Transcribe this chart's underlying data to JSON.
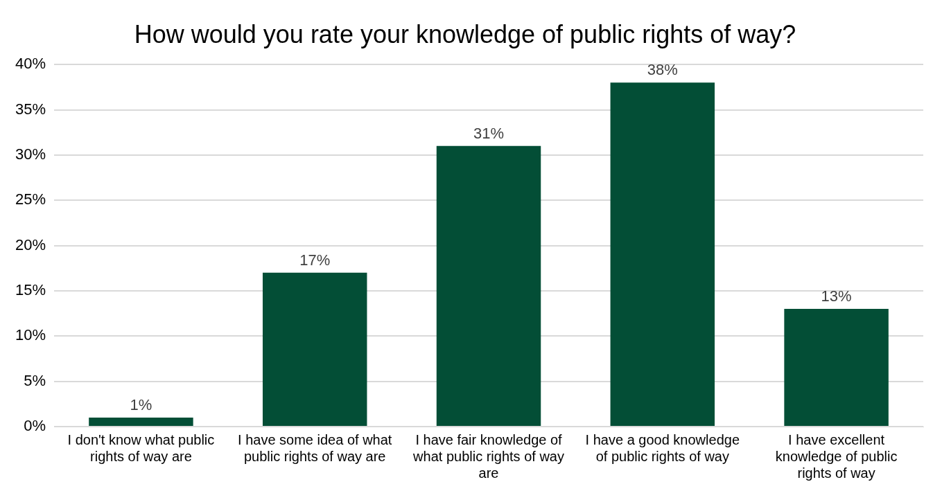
{
  "chart_data": {
    "type": "bar",
    "title": "How would you rate your knowledge of public rights of way?",
    "categories": [
      "I don't know what public rights of way are",
      "I have some idea of what public rights of way are",
      "I have fair knowledge of what public rights of way are",
      "I have a good knowledge of public rights of way",
      "I have excellent knowledge of public rights of way"
    ],
    "values": [
      1,
      17,
      31,
      38,
      13
    ],
    "color": "#034e36",
    "ylim": [
      0,
      40
    ],
    "yticks": [
      {
        "value": 0,
        "label": "0%"
      },
      {
        "value": 5,
        "label": "5%"
      },
      {
        "value": 10,
        "label": "10%"
      },
      {
        "value": 15,
        "label": "15%"
      },
      {
        "value": 20,
        "label": "20%"
      },
      {
        "value": 25,
        "label": "25%"
      },
      {
        "value": 30,
        "label": "30%"
      },
      {
        "value": 35,
        "label": "35%"
      },
      {
        "value": 40,
        "label": "40%"
      }
    ],
    "value_labels": [
      "1%",
      "17%",
      "31%",
      "38%",
      "13%"
    ],
    "grid": "y"
  }
}
